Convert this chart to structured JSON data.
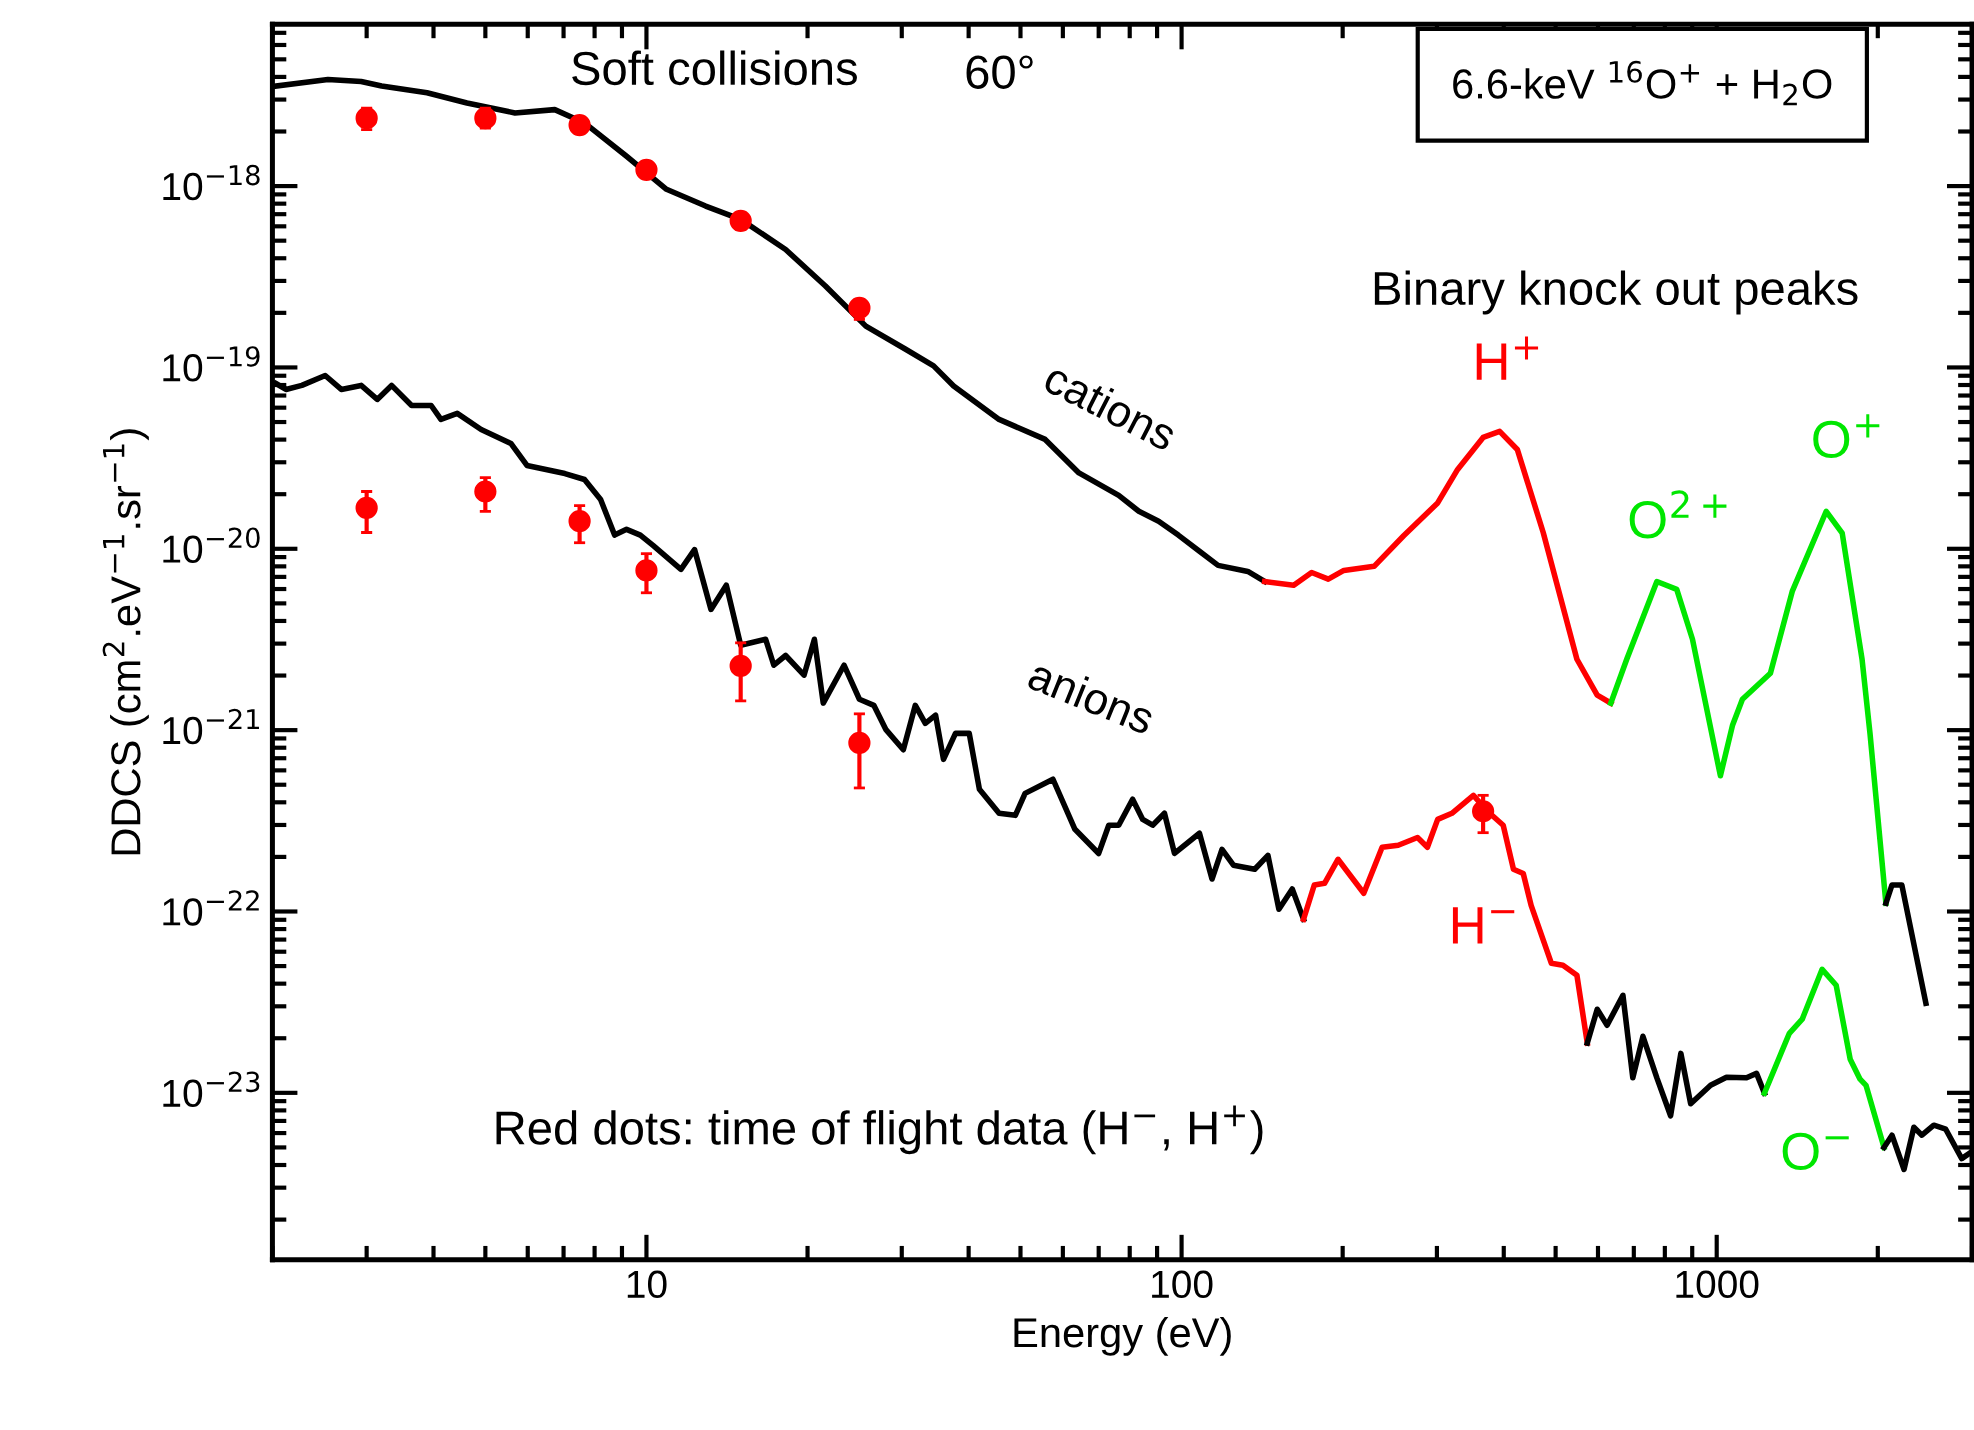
{
  "chart_data": {
    "type": "line",
    "xlabel": "Energy (eV)",
    "ylabel": "DDCS (cm$^{2}$.eV$^{−1}$.sr$^{−1}$)",
    "log": "xy",
    "xlim": [
      2,
      3000
    ],
    "ylim": [
      1.2e-24,
      7.8e-18
    ],
    "xticks": [
      10,
      100,
      1000
    ],
    "yticks": [
      {
        "value": 1e-23,
        "label": "10$^{−23}$"
      },
      {
        "value": 1e-22,
        "label": "10$^{−22}$"
      },
      {
        "value": 1e-21,
        "label": "10$^{−21}$"
      },
      {
        "value": 1e-20,
        "label": "10$^{−20}$"
      },
      {
        "value": 1e-19,
        "label": "10$^{−19}$"
      },
      {
        "value": 1e-18,
        "label": "10$^{−18}$"
      }
    ],
    "series": [
      {
        "color": "#000000",
        "x": [
          2.03,
          2.54,
          2.93,
          3.2,
          3.89,
          4.62,
          5.68,
          6.74,
          7.66,
          9.18,
          10.9,
          12.9,
          15.0,
          18.2,
          21.6,
          25.7,
          30.5,
          34.4,
          37.5,
          45.6,
          55.6,
          64.3,
          76.3,
          83.2,
          90.6,
          98.6,
          108,
          117,
          133,
          143
        ],
        "values": [
          3.56e-18,
          3.87e-18,
          3.77e-18,
          3.56e-18,
          3.27e-18,
          2.87e-18,
          2.53e-18,
          2.64e-18,
          2.23e-18,
          1.46e-18,
          9.6e-19,
          7.76e-19,
          6.55e-19,
          4.47e-19,
          2.81e-19,
          1.69e-19,
          1.26e-19,
          1.02e-19,
          7.9e-20,
          5.17e-20,
          4.01e-20,
          2.62e-20,
          1.97e-20,
          1.61e-20,
          1.42e-20,
          1.19e-20,
          9.7e-21,
          8.1e-21,
          7.5e-21,
          6.6e-21
        ]
      },
      {
        "color": "#ff0000",
        "x": [
          143,
          162,
          175,
          188,
          201,
          229,
          260,
          301,
          328,
          366,
          393,
          424,
          474,
          548,
          598,
          634
        ],
        "values": [
          6.6e-21,
          6.3e-21,
          7.4e-21,
          6.8e-21,
          7.6e-21,
          8e-21,
          1.18e-20,
          1.79e-20,
          2.74e-20,
          4.11e-20,
          4.44e-20,
          3.53e-20,
          1.23e-20,
          2.46e-21,
          1.56e-21,
          1.41e-21
        ]
      },
      {
        "color": "#00e600",
        "x": [
          634,
          679,
          773,
          842,
          901,
          1016,
          1070,
          1117,
          1260,
          1384,
          1602,
          1716,
          1869,
          1934,
          2071
        ],
        "values": [
          1.41e-21,
          2.46e-21,
          6.6e-21,
          5.97e-21,
          3.17e-21,
          5.6e-22,
          1.06e-21,
          1.48e-21,
          2.06e-21,
          5.82e-21,
          1.61e-20,
          1.22e-20,
          2.46e-21,
          9.6e-22,
          1.11e-22
        ]
      },
      {
        "color": "#000000",
        "x": [
          2071,
          2126,
          2218,
          2460
        ],
        "values": [
          1.11e-22,
          1.4e-22,
          1.4e-22,
          3.12e-23
        ]
      },
      {
        "color": "#000000",
        "x": [
          2.03,
          2.12,
          2.27,
          2.51,
          2.69,
          2.93,
          3.14,
          3.34,
          3.64,
          3.96,
          4.13,
          4.43,
          4.91,
          5.58,
          5.98,
          7.04,
          7.66,
          8.21,
          8.72,
          9.18,
          9.74,
          10.3,
          11.6,
          12.3,
          13.2,
          14.1,
          15.0,
          16.7,
          17.3,
          18.2,
          19.7,
          20.6,
          21.4,
          23.4,
          25.0,
          26.6,
          28.0,
          30.2,
          31.8,
          33.2,
          34.7,
          35.9,
          37.8,
          40.1,
          41.9,
          45.6,
          48.9,
          51.0,
          57.5,
          63.2,
          70.0,
          73.1,
          76.3,
          81.0,
          84.6,
          88.3,
          92.9,
          97.0,
          108,
          114,
          119,
          125,
          137,
          145,
          152,
          161,
          169
        ],
        "values": [
          8.16e-20,
          7.56e-20,
          7.96e-20,
          9.03e-20,
          7.56e-20,
          7.96e-20,
          6.66e-20,
          7.96e-20,
          6.17e-20,
          6.17e-20,
          5.17e-20,
          5.58e-20,
          4.55e-20,
          3.81e-20,
          2.88e-20,
          2.6e-20,
          2.41e-20,
          1.87e-20,
          1.19e-20,
          1.28e-20,
          1.19e-20,
          1.04e-20,
          7.7e-21,
          9.9e-21,
          4.63e-21,
          6.3e-21,
          2.94e-21,
          3.17e-21,
          2.28e-21,
          2.58e-21,
          2.01e-21,
          3.17e-21,
          1.41e-21,
          2.28e-21,
          1.48e-21,
          1.37e-21,
          1.01e-21,
          7.8e-22,
          1.37e-21,
          1.09e-21,
          1.21e-21,
          6.9e-22,
          9.6e-22,
          9.6e-22,
          4.72e-22,
          3.48e-22,
          3.39e-22,
          4.48e-22,
          5.36e-22,
          2.84e-22,
          2.09e-22,
          2.99e-22,
          2.99e-22,
          4.16e-22,
          3.22e-22,
          2.99e-22,
          3.48e-22,
          2.09e-22,
          2.7e-22,
          1.51e-22,
          2.2e-22,
          1.8e-22,
          1.71e-22,
          2.04e-22,
          1.03e-22,
          1.33e-22,
          9.06e-23
        ]
      },
      {
        "color": "#ff0000",
        "x": [
          169,
          177,
          185,
          196,
          219,
          237,
          254,
          276,
          288,
          301,
          320,
          351,
          373,
          399,
          417,
          435,
          450,
          491,
          516,
          548,
          573
        ],
        "values": [
          9.06e-23,
          1.4e-22,
          1.43e-22,
          1.94e-22,
          1.26e-22,
          2.26e-22,
          2.32e-22,
          2.56e-22,
          2.26e-22,
          3.22e-22,
          3.48e-22,
          4.37e-22,
          3.57e-22,
          2.99e-22,
          1.71e-22,
          1.62e-22,
          1.08e-22,
          5.18e-23,
          5.05e-23,
          4.45e-23,
          1.88e-23
        ]
      },
      {
        "color": "#000000",
        "x": [
          573,
          598,
          624,
          668,
          697,
          728,
          773,
          820,
          857,
          894,
          974,
          1043,
          1137,
          1187,
          1228
        ],
        "values": [
          1.88e-23,
          2.89e-23,
          2.36e-23,
          3.45e-23,
          1.21e-23,
          2.05e-23,
          1.21e-23,
          7.47e-24,
          1.65e-23,
          8.7e-24,
          1.1e-23,
          1.22e-23,
          1.21e-23,
          1.28e-23,
          9.95e-24
        ]
      },
      {
        "color": "#00e600",
        "x": [
          1228,
          1367,
          1445,
          1574,
          1672,
          1776,
          1853,
          1901,
          2054
        ],
        "values": [
          9.95e-24,
          2.13e-23,
          2.55e-23,
          4.8e-23,
          3.92e-23,
          1.53e-23,
          1.19e-23,
          1.1e-23,
          5e-24
        ]
      },
      {
        "color": "#000000",
        "x": [
          2054,
          2126,
          2239,
          2336,
          2418,
          2545,
          2679,
          2870,
          2970
        ],
        "values": [
          5e-24,
          5.84e-24,
          3.78e-24,
          6.46e-24,
          5.84e-24,
          6.63e-24,
          6.3e-24,
          4.34e-24,
          4.65e-24
        ]
      },
      {
        "type": "scatter",
        "color": "#ff0000",
        "marker": "circle",
        "x": [
          3,
          5,
          7.5,
          10,
          15,
          25
        ],
        "values": [
          2.37e-18,
          2.37e-18,
          2.17e-18,
          1.23e-18,
          6.43e-19,
          2.13e-19
        ],
        "errors": [
          [
            2.05e-18,
            2.69e-18
          ],
          [
            2.09e-18,
            2.69e-18
          ],
          null,
          null,
          [
            5.77e-19,
            7.11e-19
          ],
          [
            1.84e-19,
            2.37e-19
          ]
        ]
      },
      {
        "type": "scatter",
        "color": "#ff0000",
        "marker": "circle",
        "x": [
          3,
          5,
          7.5,
          10,
          15,
          25,
          366
        ],
        "values": [
          1.68e-20,
          2.07e-20,
          1.42e-20,
          7.6e-21,
          2.26e-21,
          8.5e-22,
          3.57e-22
        ],
        "errors": [
          [
            1.23e-20,
            2.07e-20
          ],
          [
            1.61e-20,
            2.47e-20
          ],
          [
            1.08e-20,
            1.73e-20
          ],
          [
            5.72e-21,
            9.4e-21
          ],
          [
            1.45e-21,
            3.03e-21
          ],
          [
            4.8e-22,
            1.23e-21
          ],
          [
            2.72e-22,
            4.37e-22
          ]
        ]
      }
    ],
    "annotations": [
      "Soft collisions",
      "60°",
      "6.6-keV $^{16}$O$^{+}$ + H$_{2}$O",
      "Binary knock out peaks",
      "Red dots: time of flight data (H$^{−}$, H$^{+}$)",
      "cations",
      "anions",
      "H$^{+}$",
      "O$^{2+}$",
      "O$^{+}$",
      "H$^{−}$",
      "O$^{−}$"
    ]
  }
}
